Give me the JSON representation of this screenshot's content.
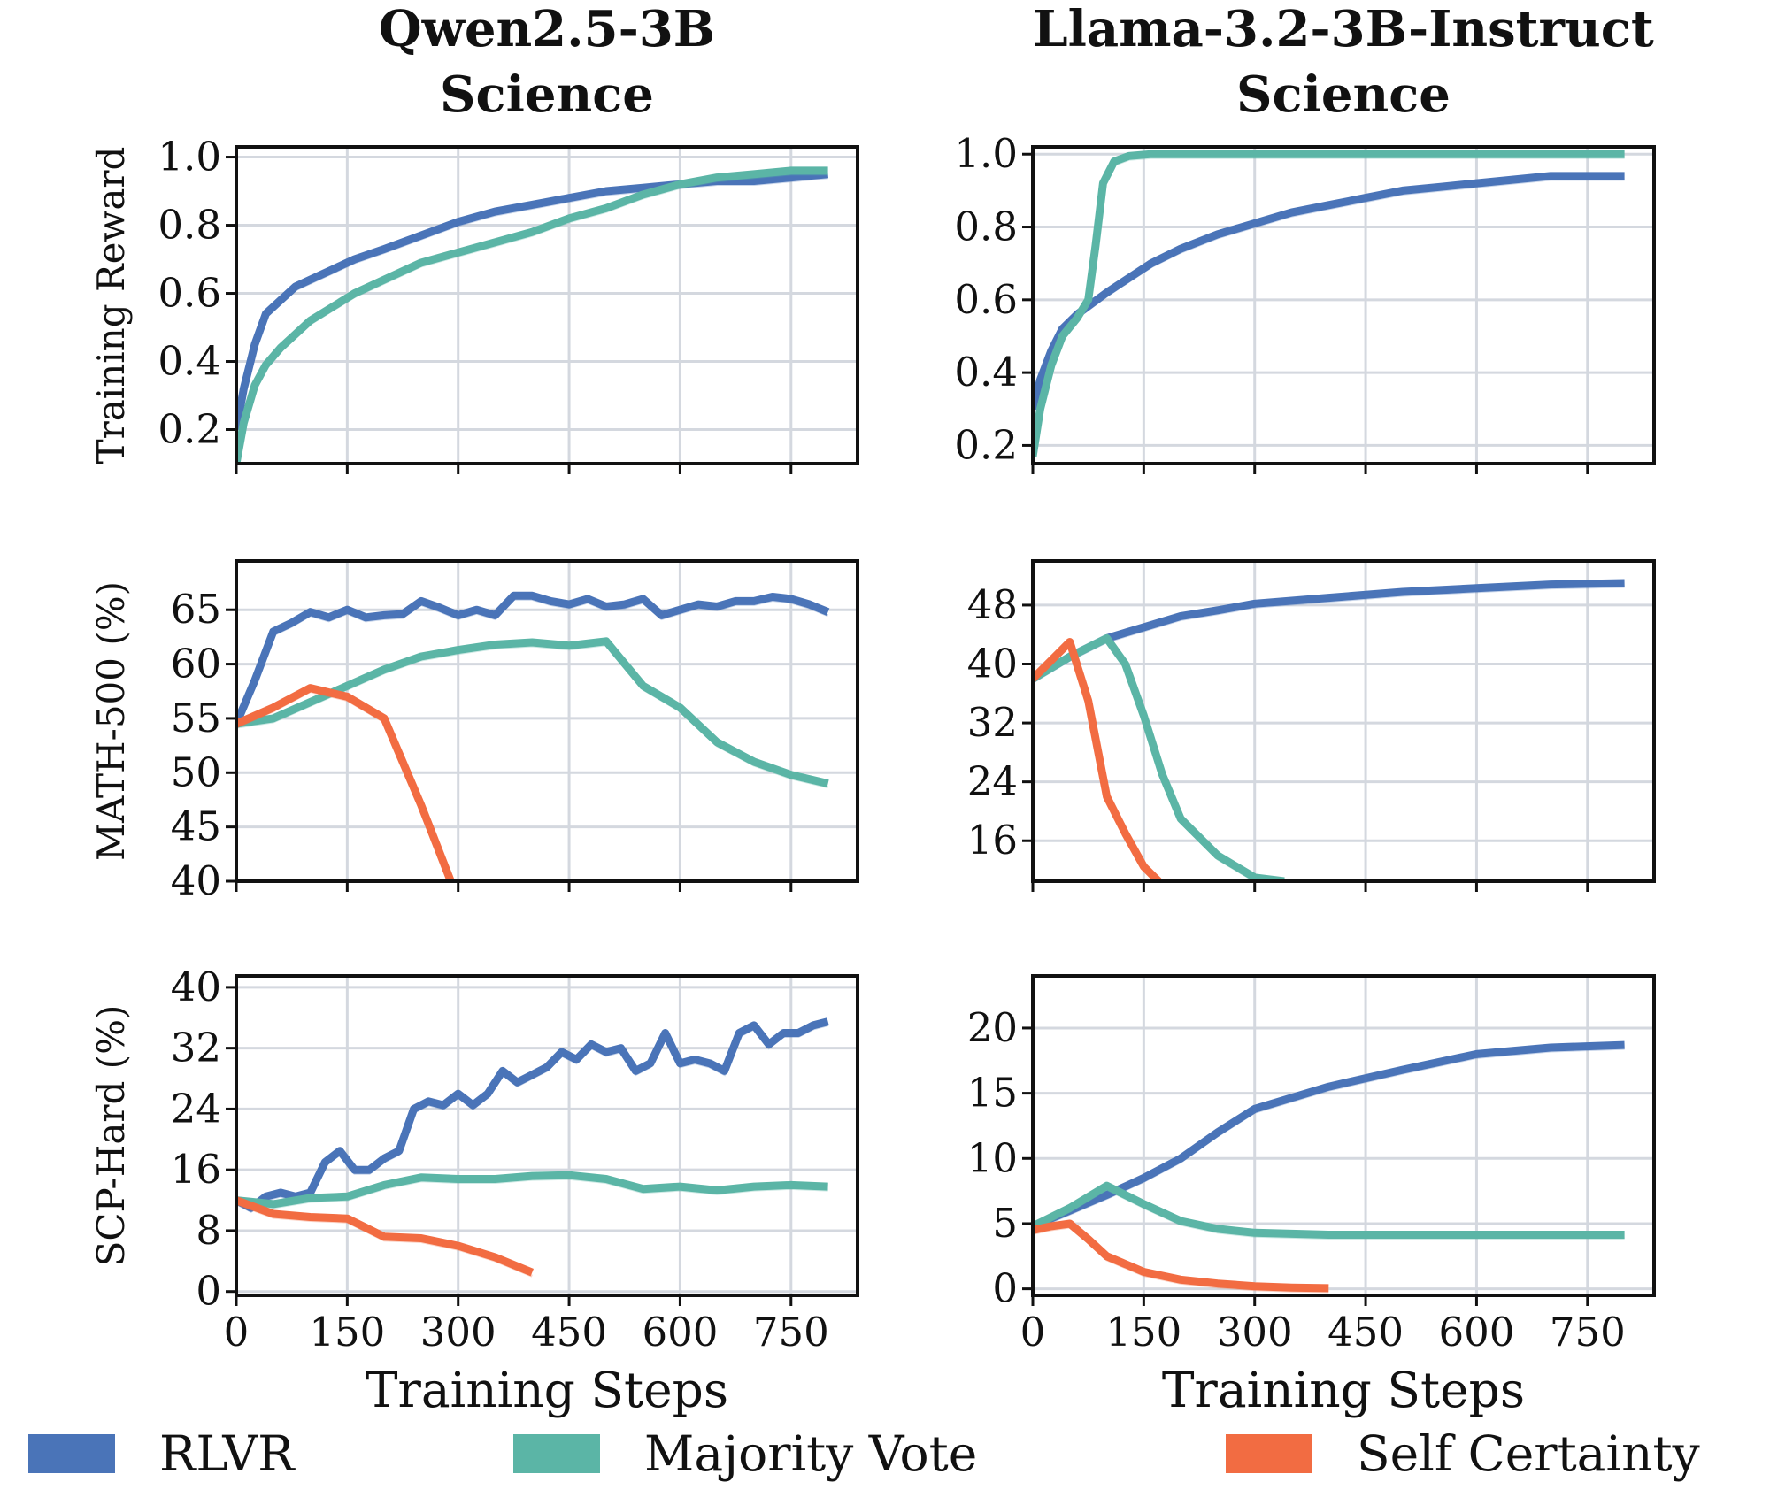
{
  "columns": [
    {
      "title_line1": "Qwen2.5-3B",
      "title_line2": "Science"
    },
    {
      "title_line1": "Llama-3.2-3B-Instruct",
      "title_line2": "Science"
    }
  ],
  "xlabel": "Training Steps",
  "legend": [
    {
      "name": "RLVR",
      "color": "#4a74b8"
    },
    {
      "name": "Majority Vote",
      "color": "#5bb5a6"
    },
    {
      "name": "Self Certainty",
      "color": "#f26c42"
    }
  ],
  "chart_data": [
    {
      "type": "line",
      "column": "Qwen2.5-3B Science",
      "ylabel": "Training Reward",
      "xlim": [
        0,
        840
      ],
      "ylim": [
        0.1,
        1.03
      ],
      "xticks": [
        0,
        150,
        300,
        450,
        600,
        750
      ],
      "yticks": [
        0.2,
        0.4,
        0.6,
        0.8,
        1.0
      ],
      "ytick_labels": [
        "0.2",
        "0.4",
        "0.6",
        "0.8",
        "1.0"
      ],
      "series": [
        {
          "name": "RLVR",
          "x": [
            0,
            10,
            25,
            40,
            60,
            80,
            100,
            130,
            160,
            200,
            250,
            300,
            350,
            400,
            450,
            500,
            550,
            600,
            650,
            700,
            750,
            800
          ],
          "y": [
            0.2,
            0.32,
            0.45,
            0.54,
            0.58,
            0.62,
            0.64,
            0.67,
            0.7,
            0.73,
            0.77,
            0.81,
            0.84,
            0.86,
            0.88,
            0.9,
            0.91,
            0.92,
            0.93,
            0.93,
            0.94,
            0.95
          ]
        },
        {
          "name": "Majority Vote",
          "x": [
            0,
            10,
            25,
            40,
            60,
            80,
            100,
            130,
            160,
            200,
            250,
            300,
            350,
            400,
            450,
            500,
            550,
            600,
            650,
            700,
            750,
            800
          ],
          "y": [
            0.1,
            0.22,
            0.33,
            0.39,
            0.44,
            0.48,
            0.52,
            0.56,
            0.6,
            0.64,
            0.69,
            0.72,
            0.75,
            0.78,
            0.82,
            0.85,
            0.89,
            0.92,
            0.94,
            0.95,
            0.96,
            0.96
          ]
        }
      ]
    },
    {
      "type": "line",
      "column": "Llama-3.2-3B-Instruct Science",
      "ylabel": "",
      "xlim": [
        0,
        840
      ],
      "ylim": [
        0.15,
        1.02
      ],
      "xticks": [
        0,
        150,
        300,
        450,
        600,
        750
      ],
      "yticks": [
        0.2,
        0.4,
        0.6,
        0.8,
        1.0
      ],
      "ytick_labels": [
        "0.2",
        "0.4",
        "0.6",
        "0.8",
        "1.0"
      ],
      "series": [
        {
          "name": "RLVR",
          "x": [
            0,
            10,
            25,
            40,
            60,
            80,
            100,
            130,
            160,
            200,
            250,
            300,
            350,
            400,
            450,
            500,
            550,
            600,
            650,
            700,
            750,
            800
          ],
          "y": [
            0.3,
            0.38,
            0.46,
            0.52,
            0.56,
            0.59,
            0.62,
            0.66,
            0.7,
            0.74,
            0.78,
            0.81,
            0.84,
            0.86,
            0.88,
            0.9,
            0.91,
            0.92,
            0.93,
            0.94,
            0.94,
            0.94
          ]
        },
        {
          "name": "Majority Vote",
          "x": [
            0,
            10,
            25,
            40,
            60,
            75,
            85,
            95,
            110,
            130,
            160,
            200,
            300,
            400,
            500,
            600,
            700,
            800
          ],
          "y": [
            0.17,
            0.3,
            0.42,
            0.5,
            0.55,
            0.6,
            0.75,
            0.92,
            0.98,
            0.995,
            1.0,
            1.0,
            1.0,
            1.0,
            1.0,
            1.0,
            1.0,
            1.0
          ]
        }
      ]
    },
    {
      "type": "line",
      "column": "Qwen2.5-3B Science",
      "ylabel": "MATH-500 (%)",
      "xlim": [
        0,
        840
      ],
      "ylim": [
        40,
        69.5
      ],
      "xticks": [
        0,
        150,
        300,
        450,
        600,
        750
      ],
      "yticks": [
        40,
        45,
        50,
        55,
        60,
        65
      ],
      "ytick_labels": [
        "40",
        "45",
        "50",
        "55",
        "60",
        "65"
      ],
      "series": [
        {
          "name": "RLVR",
          "x": [
            0,
            25,
            50,
            75,
            100,
            125,
            150,
            175,
            200,
            225,
            250,
            275,
            300,
            325,
            350,
            375,
            400,
            425,
            450,
            475,
            500,
            525,
            550,
            575,
            600,
            625,
            650,
            675,
            700,
            725,
            750,
            775,
            800
          ],
          "y": [
            54.5,
            58.5,
            63,
            63.8,
            64.8,
            64.3,
            65,
            64.3,
            64.5,
            64.6,
            65.8,
            65.2,
            64.5,
            65,
            64.5,
            66.3,
            66.3,
            65.8,
            65.5,
            66,
            65.3,
            65.5,
            66,
            64.5,
            65,
            65.5,
            65.3,
            65.8,
            65.8,
            66.2,
            66,
            65.5,
            64.8
          ]
        },
        {
          "name": "Majority Vote",
          "x": [
            0,
            50,
            100,
            150,
            200,
            250,
            300,
            350,
            400,
            450,
            500,
            550,
            600,
            650,
            700,
            750,
            800
          ],
          "y": [
            54.5,
            55,
            56.5,
            58,
            59.5,
            60.7,
            61.3,
            61.8,
            62,
            61.7,
            62.1,
            58,
            56,
            52.8,
            51,
            49.8,
            49
          ]
        },
        {
          "name": "Self Certainty",
          "x": [
            0,
            50,
            100,
            150,
            200,
            250,
            290
          ],
          "y": [
            54.5,
            56,
            57.8,
            57,
            55,
            47,
            40
          ]
        }
      ]
    },
    {
      "type": "line",
      "column": "Llama-3.2-3B-Instruct Science",
      "ylabel": "",
      "xlim": [
        0,
        840
      ],
      "ylim": [
        10.5,
        54
      ],
      "xticks": [
        0,
        150,
        300,
        450,
        600,
        750
      ],
      "yticks": [
        16,
        24,
        32,
        40,
        48
      ],
      "ytick_labels": [
        "16",
        "24",
        "32",
        "40",
        "48"
      ],
      "series": [
        {
          "name": "RLVR",
          "x": [
            0,
            50,
            100,
            150,
            200,
            250,
            300,
            400,
            500,
            600,
            700,
            800
          ],
          "y": [
            38,
            41,
            43.5,
            45,
            46.5,
            47.3,
            48.2,
            49,
            49.8,
            50.3,
            50.8,
            51
          ]
        },
        {
          "name": "Majority Vote",
          "x": [
            0,
            50,
            100,
            125,
            150,
            175,
            200,
            250,
            300,
            340
          ],
          "y": [
            38,
            41,
            43.5,
            40,
            33,
            25,
            19,
            14,
            11,
            10.5
          ]
        },
        {
          "name": "Self Certainty",
          "x": [
            0,
            25,
            50,
            75,
            100,
            125,
            150,
            170
          ],
          "y": [
            38,
            40.5,
            43,
            35,
            22,
            17,
            12.5,
            10.5
          ]
        }
      ]
    },
    {
      "type": "line",
      "column": "Qwen2.5-3B Science",
      "ylabel": "SCP-Hard (%)",
      "xlim": [
        0,
        840
      ],
      "ylim": [
        -0.5,
        41.5
      ],
      "xticks": [
        0,
        150,
        300,
        450,
        600,
        750
      ],
      "yticks": [
        0,
        8,
        16,
        24,
        32,
        40
      ],
      "ytick_labels": [
        "0",
        "8",
        "16",
        "24",
        "32",
        "40"
      ],
      "series": [
        {
          "name": "RLVR",
          "x": [
            0,
            20,
            40,
            60,
            80,
            100,
            120,
            140,
            160,
            180,
            200,
            220,
            240,
            260,
            280,
            300,
            320,
            340,
            360,
            380,
            400,
            420,
            440,
            460,
            480,
            500,
            520,
            540,
            560,
            580,
            600,
            620,
            640,
            660,
            680,
            700,
            720,
            740,
            760,
            780,
            800
          ],
          "y": [
            12,
            11,
            12.5,
            13,
            12.5,
            13,
            17,
            18.5,
            16,
            16,
            17.5,
            18.5,
            24,
            25,
            24.5,
            26,
            24.5,
            26,
            29,
            27.5,
            28.5,
            29.5,
            31.5,
            30.5,
            32.5,
            31.5,
            32,
            29,
            30,
            34,
            30,
            30.5,
            30,
            29,
            34,
            35,
            32.5,
            34,
            34,
            35,
            35.5
          ]
        },
        {
          "name": "Majority Vote",
          "x": [
            0,
            50,
            100,
            150,
            200,
            250,
            300,
            350,
            400,
            450,
            500,
            550,
            600,
            650,
            700,
            750,
            800
          ],
          "y": [
            12,
            11.5,
            12.3,
            12.5,
            14,
            15,
            14.8,
            14.8,
            15.2,
            15.3,
            14.8,
            13.5,
            13.8,
            13.3,
            13.8,
            14,
            13.8
          ]
        },
        {
          "name": "Self Certainty",
          "x": [
            0,
            50,
            100,
            150,
            200,
            250,
            300,
            350,
            400
          ],
          "y": [
            12,
            10.2,
            9.8,
            9.6,
            7.2,
            7,
            6,
            4.5,
            2.5
          ]
        }
      ]
    },
    {
      "type": "line",
      "column": "Llama-3.2-3B-Instruct Science",
      "ylabel": "",
      "xlim": [
        0,
        840
      ],
      "ylim": [
        -0.5,
        24
      ],
      "xticks": [
        0,
        150,
        300,
        450,
        600,
        750
      ],
      "yticks": [
        0,
        5,
        10,
        15,
        20
      ],
      "ytick_labels": [
        "0",
        "5",
        "10",
        "15",
        "20"
      ],
      "series": [
        {
          "name": "RLVR",
          "x": [
            0,
            50,
            100,
            150,
            200,
            250,
            300,
            400,
            500,
            600,
            700,
            800
          ],
          "y": [
            4.8,
            6,
            7.2,
            8.5,
            10,
            12,
            13.8,
            15.5,
            16.8,
            18,
            18.5,
            18.7
          ]
        },
        {
          "name": "Majority Vote",
          "x": [
            0,
            50,
            100,
            150,
            200,
            250,
            300,
            400,
            500,
            600,
            700,
            800
          ],
          "y": [
            4.8,
            6.2,
            7.9,
            6.5,
            5.2,
            4.6,
            4.3,
            4.15,
            4.15,
            4.15,
            4.15,
            4.15
          ]
        },
        {
          "name": "Self Certainty",
          "x": [
            0,
            25,
            50,
            75,
            100,
            150,
            200,
            250,
            300,
            350,
            400
          ],
          "y": [
            4.5,
            4.8,
            5,
            3.8,
            2.5,
            1.3,
            0.7,
            0.4,
            0.2,
            0.1,
            0.05
          ]
        }
      ]
    }
  ]
}
